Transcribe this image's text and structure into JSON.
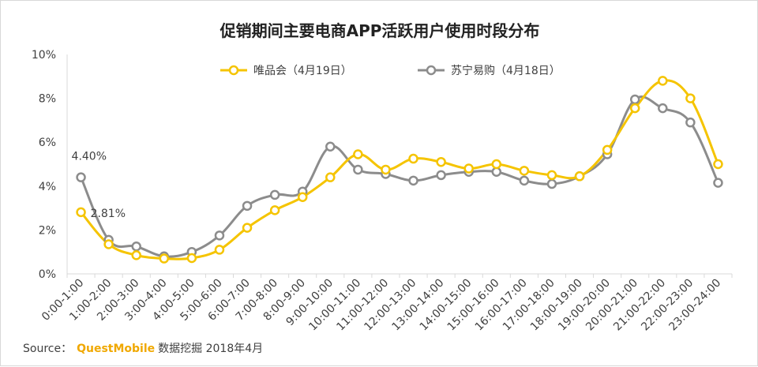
{
  "chart_data": {
    "type": "line",
    "title": "促销期间主要电商APP活跃用户使用时段分布",
    "xlabel": "",
    "ylabel": "",
    "ylim": [
      0,
      10
    ],
    "yticks": [
      "0%",
      "2%",
      "4%",
      "6%",
      "8%",
      "10%"
    ],
    "legend_position": "top-center",
    "categories": [
      "0:00-1:00",
      "1:00-2:00",
      "2:00-3:00",
      "3:00-4:00",
      "4:00-5:00",
      "5:00-6:00",
      "6:00-7:00",
      "7:00-8:00",
      "8:00-9:00",
      "9:00-10:00",
      "10:00-11:00",
      "11:00-12:00",
      "12:00-13:00",
      "13:00-14:00",
      "14:00-15:00",
      "15:00-16:00",
      "16:00-17:00",
      "17:00-18:00",
      "18:00-19:00",
      "19:00-20:00",
      "20:00-21:00",
      "21:00-22:00",
      "22:00-23:00",
      "23:00-24:00"
    ],
    "series": [
      {
        "name": "唯品会（4月19日）",
        "color": "#f5c400",
        "values": [
          2.81,
          1.35,
          0.85,
          0.7,
          0.72,
          1.1,
          2.1,
          2.9,
          3.5,
          4.4,
          5.45,
          4.75,
          5.25,
          5.1,
          4.8,
          5.0,
          4.7,
          4.5,
          4.45,
          5.65,
          7.55,
          8.8,
          8.0,
          5.0
        ]
      },
      {
        "name": "苏宁易购（4月18日）",
        "color": "#8c8c8c",
        "values": [
          4.4,
          1.55,
          1.25,
          0.8,
          1.0,
          1.75,
          3.1,
          3.6,
          3.75,
          5.8,
          4.75,
          4.55,
          4.25,
          4.5,
          4.65,
          4.65,
          4.25,
          4.1,
          4.45,
          5.45,
          7.95,
          7.55,
          6.9,
          4.15
        ]
      }
    ],
    "annotations": [
      {
        "text": "4.40%",
        "series": 1,
        "index": 0
      },
      {
        "text": "2.81%",
        "series": 0,
        "index": 0
      }
    ]
  },
  "source": {
    "label": "Source：",
    "brand": "QuestMobile",
    "text": "数据挖掘 2018年4月"
  }
}
